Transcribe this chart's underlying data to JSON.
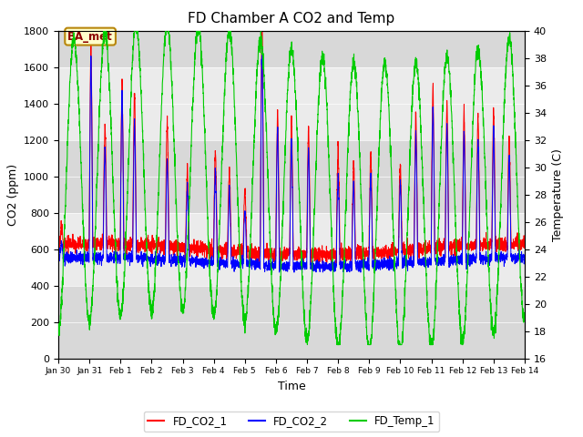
{
  "title": "FD Chamber A CO2 and Temp",
  "xlabel": "Time",
  "ylabel_left": "CO2 (ppm)",
  "ylabel_right": "Temperature (C)",
  "ylim_left": [
    0,
    1800
  ],
  "ylim_right": [
    16,
    40
  ],
  "xlim": [
    0,
    15
  ],
  "xtick_labels": [
    "Jan 30",
    "Jan 31",
    "Feb 1",
    "Feb 2",
    "Feb 3",
    "Feb 4",
    "Feb 5",
    "Feb 6",
    "Feb 7",
    "Feb 8",
    "Feb 9",
    "Feb 10",
    "Feb 11",
    "Feb 12",
    "Feb 13",
    "Feb 14"
  ],
  "yticks_left": [
    0,
    200,
    400,
    600,
    800,
    1000,
    1200,
    1400,
    1600,
    1800
  ],
  "yticks_right": [
    16,
    18,
    20,
    22,
    24,
    26,
    28,
    30,
    32,
    34,
    36,
    38,
    40
  ],
  "color_co2_1": "#ff0000",
  "color_co2_2": "#0000ff",
  "color_temp": "#00cc00",
  "legend_labels": [
    "FD_CO2_1",
    "FD_CO2_2",
    "FD_Temp_1"
  ],
  "annotation_text": "BA_met",
  "band_dark": "#d8d8d8",
  "band_light": "#ebebeb",
  "title_fontsize": 11,
  "label_fontsize": 9,
  "tick_fontsize": 8
}
